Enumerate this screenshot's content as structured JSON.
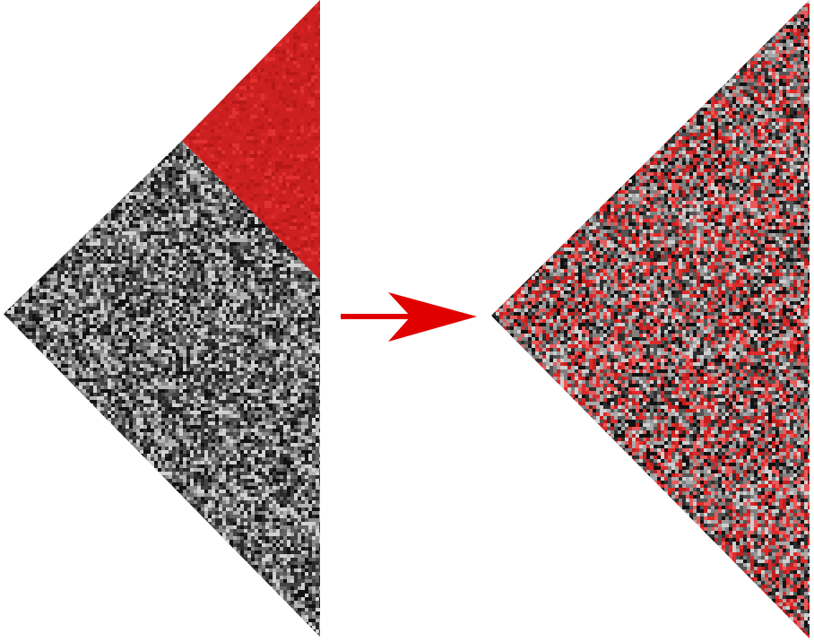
{
  "diagram": {
    "left_panel": {
      "shape": "left-pointing half-diamond",
      "upper_region_color": "#cc2020",
      "lower_region_palette": [
        "#111111",
        "#2a2a2a",
        "#444444",
        "#666666",
        "#8a8a8a",
        "#b4b4b4",
        "#d2d2d2"
      ]
    },
    "arrow": {
      "direction": "right",
      "color": "#e10000",
      "icon": "arrow-right-icon"
    },
    "right_panel": {
      "shape": "left-pointing half-diamond",
      "palette": [
        "#111111",
        "#2e2e2e",
        "#555555",
        "#808080",
        "#aaaaaa",
        "#cfcfcf",
        "#e02a2a",
        "#c41e1e",
        "#e85a5a"
      ]
    }
  }
}
